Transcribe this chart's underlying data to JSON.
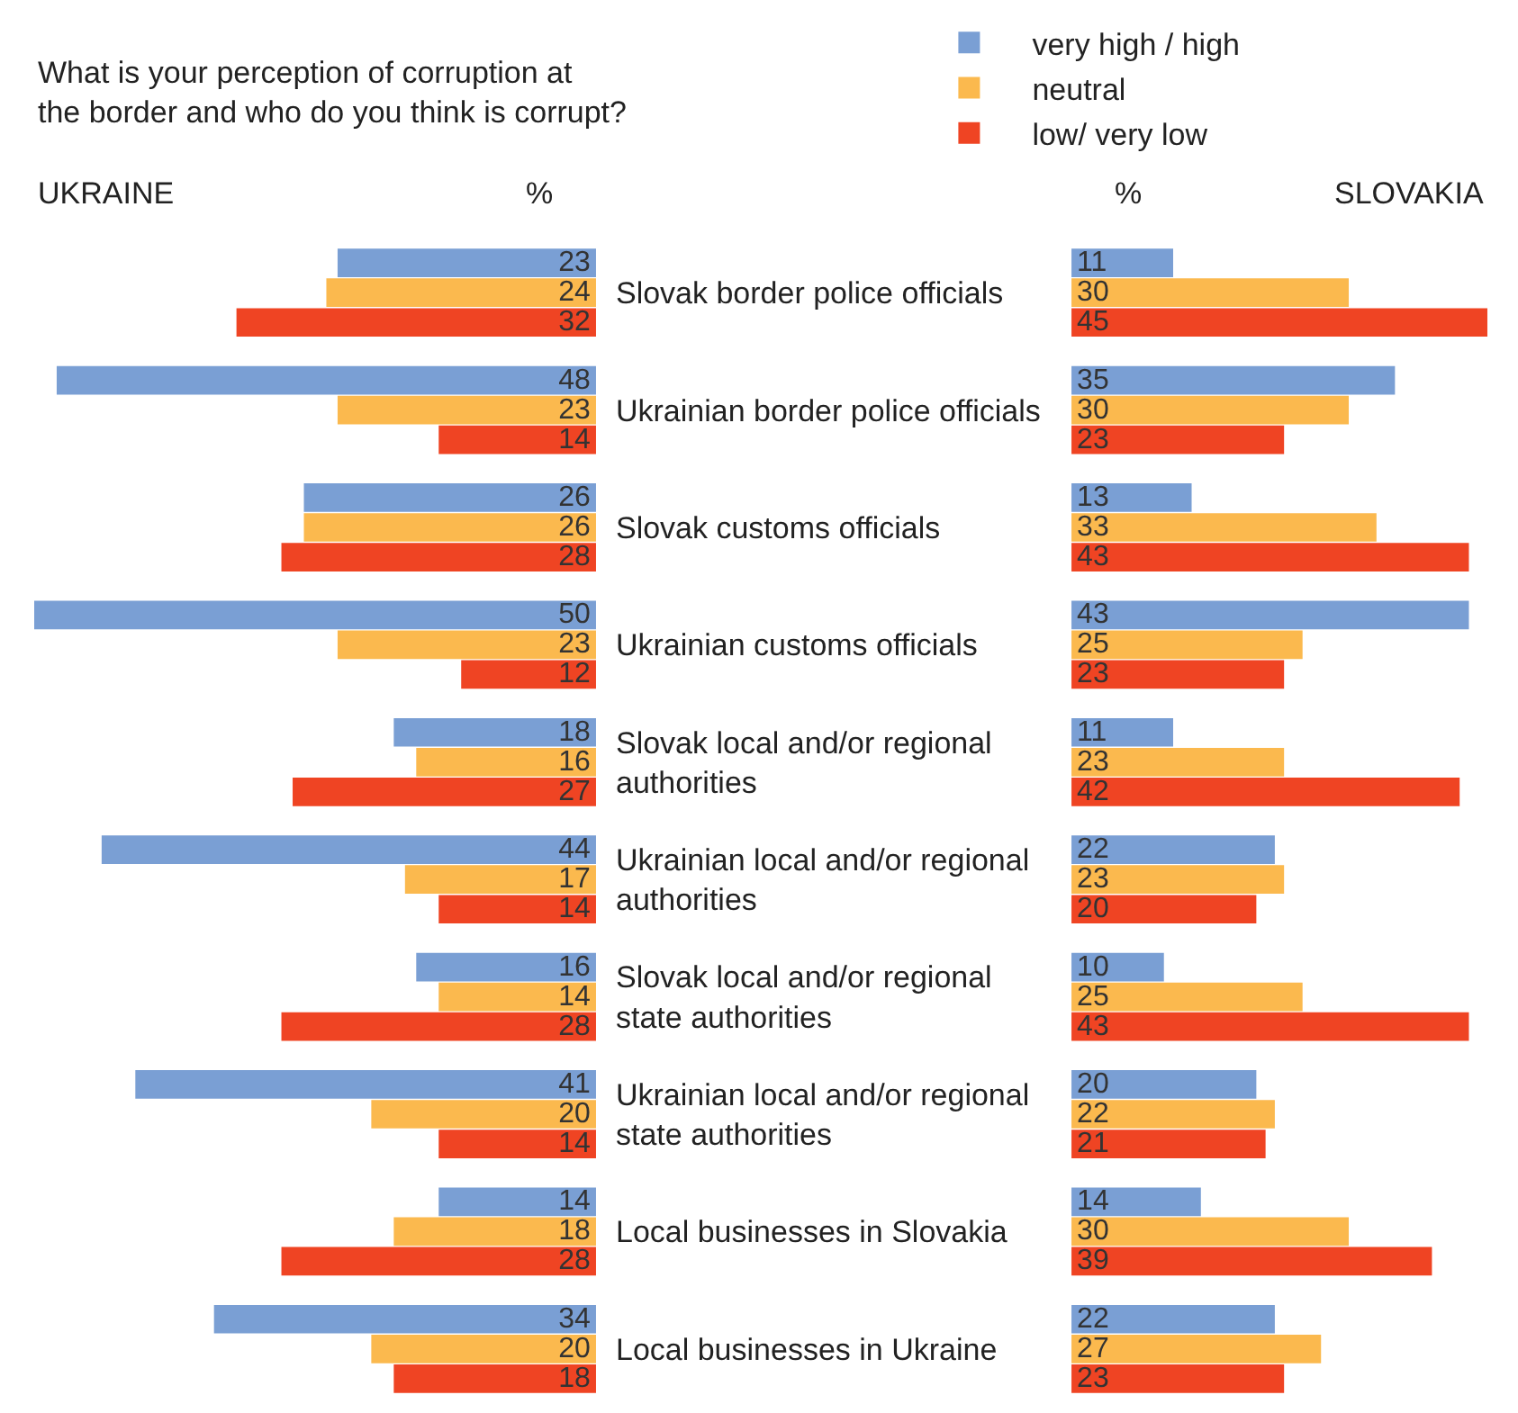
{
  "chart_data": [
    {
      "type": "bar",
      "orientation": "horizontal",
      "title": "What is your perception of corruption at the border and who do you think is corrupt?",
      "subtitle": "UKRAINE",
      "xlabel": "%",
      "categories": [
        "Slovak border police officials",
        "Ukrainian border police officials",
        "Slovak customs officials",
        "Ukrainian customs officials",
        "Slovak local and/or regional authorities",
        "Ukrainian local and/or regional authorities",
        "Slovak local and/or regional state authorities",
        "Ukrainian local and/or regional state authorities",
        "Local businesses in Slovakia",
        "Local businesses in Ukraine"
      ],
      "series": [
        {
          "name": "very high / high",
          "color": "#7a9fd4",
          "values": [
            23,
            48,
            26,
            50,
            18,
            44,
            16,
            41,
            14,
            34
          ]
        },
        {
          "name": "neutral",
          "color": "#fbb94e",
          "values": [
            24,
            23,
            26,
            23,
            16,
            17,
            14,
            20,
            18,
            20
          ]
        },
        {
          "name": "low/ very low",
          "color": "#ef4423",
          "values": [
            32,
            14,
            28,
            12,
            27,
            14,
            28,
            14,
            28,
            18
          ]
        }
      ],
      "xlim": [
        50,
        0
      ],
      "data_labels": true,
      "legend": "top",
      "tick_labels": "y"
    },
    {
      "type": "bar",
      "orientation": "horizontal",
      "title": "SLOVAKIA",
      "xlabel": "%",
      "categories": [
        null,
        null,
        null,
        null,
        null,
        null,
        null,
        null,
        null,
        null
      ],
      "series": [
        {
          "color": "#7a9fd4",
          "values": [
            11,
            35,
            13,
            43,
            11,
            22,
            10,
            20,
            14,
            22
          ]
        },
        {
          "color": "#fbb94e",
          "values": [
            30,
            30,
            33,
            25,
            23,
            23,
            25,
            22,
            30,
            27
          ]
        },
        {
          "color": "#ef4423",
          "values": [
            45,
            23,
            43,
            23,
            42,
            20,
            43,
            21,
            39,
            23
          ]
        }
      ],
      "xlim": [
        0,
        45
      ],
      "data_labels": true,
      "tick_labels": false
    }
  ]
}
